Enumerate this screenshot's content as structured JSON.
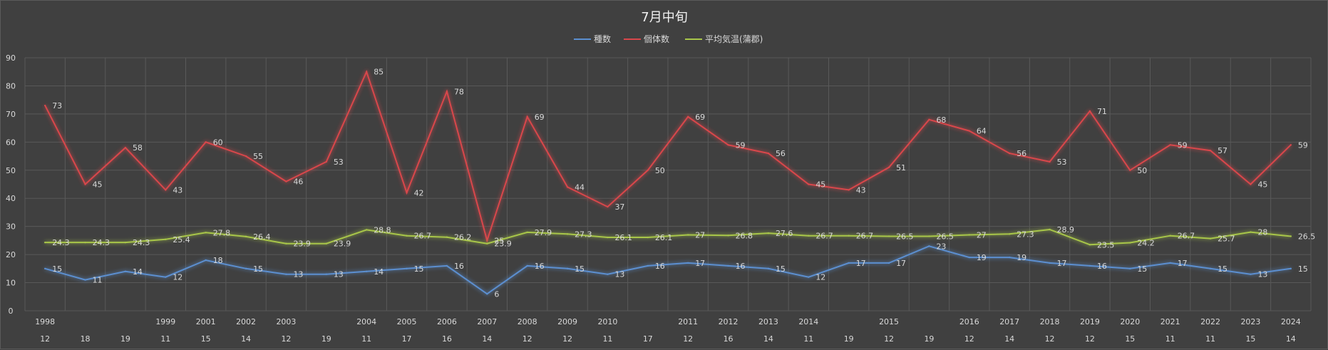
{
  "chart_data": {
    "type": "line",
    "title": "7月中旬",
    "ylim": [
      0,
      90
    ],
    "yticks": [
      "0",
      "10",
      "20",
      "30",
      "40",
      "50",
      "60",
      "70",
      "80",
      "90"
    ],
    "grid": true,
    "legend_position": "top",
    "categories_top": [
      "1998",
      "",
      "",
      "1999",
      "2001",
      "2002",
      "2003",
      "",
      "2004",
      "2005",
      "2006",
      "2007",
      "2008",
      "2009",
      "2010",
      "",
      "2011",
      "2012",
      "2013",
      "2014",
      "",
      "2015",
      "",
      "2016",
      "2017",
      "2018",
      "2019",
      "2020",
      "2021",
      "2022",
      "2023",
      "2024"
    ],
    "categories_bottom": [
      "12",
      "18",
      "19",
      "11",
      "15",
      "14",
      "12",
      "19",
      "11",
      "17",
      "16",
      "14",
      "12",
      "12",
      "11",
      "17",
      "12",
      "16",
      "14",
      "11",
      "19",
      "12",
      "19",
      "12",
      "14",
      "12",
      "12",
      "15",
      "11",
      "11",
      "15",
      "14"
    ],
    "series": [
      {
        "name": "種数",
        "color": "#5b8fd0",
        "values": [
          15,
          11,
          14,
          12,
          18,
          15,
          13,
          13,
          14,
          15,
          16,
          6,
          16,
          15,
          13,
          16,
          17,
          16,
          15,
          12,
          17,
          17,
          23,
          19,
          19,
          17,
          16,
          15,
          17,
          15,
          13,
          15
        ]
      },
      {
        "name": "個体数",
        "color": "#d9474b",
        "values": [
          73,
          45,
          58,
          43,
          60,
          55,
          46,
          53,
          85,
          42,
          78,
          25,
          69,
          44,
          37,
          50,
          69,
          59,
          56,
          45,
          43,
          51,
          68,
          64,
          56,
          53,
          71,
          50,
          59,
          57,
          45,
          59
        ]
      },
      {
        "name": "平均気温(蒲郡)",
        "color": "#a8c64a",
        "values": [
          24.3,
          24.3,
          24.3,
          25.4,
          27.8,
          26.4,
          23.9,
          23.9,
          28.8,
          26.7,
          26.2,
          23.9,
          27.9,
          27.3,
          26.1,
          26.1,
          27,
          26.8,
          27.6,
          26.7,
          26.7,
          26.5,
          26.5,
          27,
          27.3,
          28.9,
          23.5,
          24.2,
          26.7,
          25.7,
          28,
          26.5
        ]
      }
    ]
  }
}
